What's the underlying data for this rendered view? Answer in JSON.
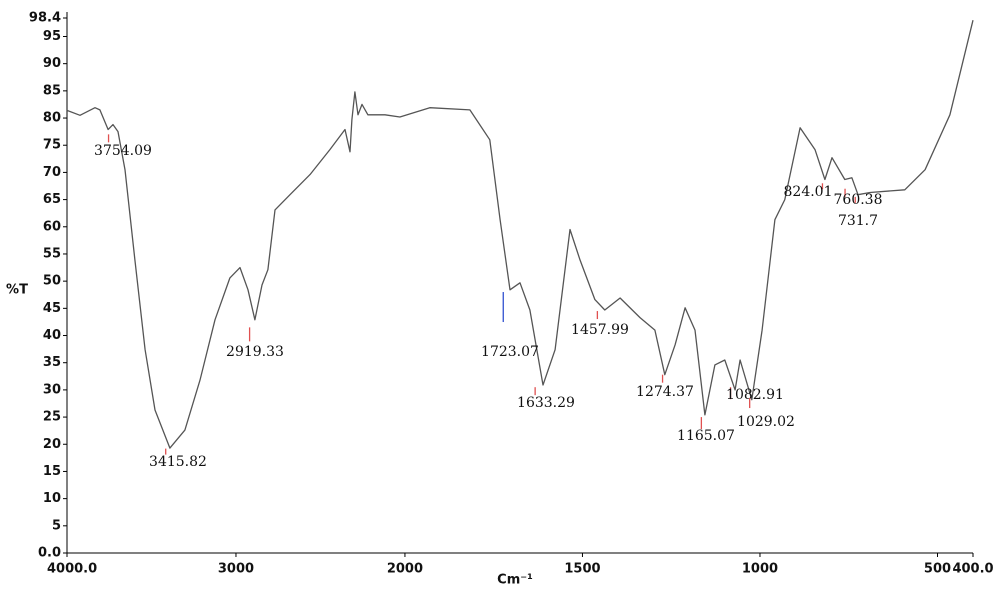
{
  "chart_data": {
    "type": "line",
    "x_label": "Cm⁻¹",
    "y_label": "%T",
    "xlim": [
      4000,
      400
    ],
    "x_break": 2000,
    "xticks": [
      {
        "value": 4000,
        "label": "4000.0"
      },
      3000,
      2000,
      1500,
      1000,
      500,
      {
        "value": 400,
        "label": "400.0"
      }
    ],
    "ylim": [
      0,
      98.4
    ],
    "yticks": [
      {
        "value": 0,
        "label": "0.0"
      },
      5,
      10,
      15,
      20,
      25,
      30,
      35,
      40,
      45,
      50,
      55,
      60,
      65,
      70,
      75,
      80,
      85,
      90,
      95,
      98.4
    ],
    "grid": false,
    "series": [
      {
        "color": "#555555",
        "x": [
          4000,
          3923,
          3834,
          3805,
          3757,
          3728,
          3698,
          3657,
          3598,
          3538,
          3479,
          3391,
          3302,
          3213,
          3124,
          3036,
          2976,
          2929,
          2888,
          2846,
          2811,
          2769,
          2680,
          2562,
          2444,
          2355,
          2325,
          2314,
          2296,
          2278,
          2254,
          2219,
          2118,
          2030,
          1930,
          1817,
          1761,
          1732,
          1704,
          1676,
          1648,
          1611,
          1577,
          1535,
          1507,
          1465,
          1437,
          1394,
          1338,
          1296,
          1268,
          1239,
          1211,
          1183,
          1155,
          1127,
          1099,
          1070,
          1056,
          1023,
          994,
          958,
          930,
          887,
          845,
          817,
          797,
          761,
          741,
          724,
          690,
          592,
          535,
          465,
          400
        ],
        "values": [
          81.4,
          80.5,
          81.9,
          81.5,
          77.9,
          78.8,
          77.5,
          70.5,
          53.9,
          37.4,
          26.3,
          19.3,
          22.6,
          31.8,
          42.9,
          50.6,
          52.5,
          48.4,
          42.9,
          49.3,
          52.1,
          63.1,
          65.9,
          69.6,
          74.2,
          77.9,
          73.8,
          79.7,
          84.8,
          80.6,
          82.5,
          80.6,
          80.6,
          80.2,
          81.9,
          81.5,
          76,
          61.3,
          48.4,
          49.7,
          44.7,
          30.9,
          37.4,
          59.5,
          53.9,
          46.6,
          44.7,
          46.9,
          43.3,
          41,
          32.8,
          38.3,
          45.1,
          41,
          25.4,
          34.6,
          35.5,
          30,
          35.5,
          28.2,
          41,
          61.3,
          65,
          78.2,
          74.2,
          68.7,
          72.7,
          68.7,
          69,
          65.9,
          66.3,
          66.8,
          70.5,
          80.6,
          98
        ]
      }
    ],
    "peaks": [
      {
        "x": 3754.09,
        "y": 77,
        "color": "#e05050"
      },
      {
        "x": 3415.82,
        "y": 19.2,
        "color": "#e05050"
      },
      {
        "x": 2919.33,
        "y": 41.5,
        "color": "#e05050"
      },
      {
        "x": 1723.07,
        "y": 48,
        "color": "#3050d0"
      },
      {
        "x": 1633.29,
        "y": 30.5,
        "color": "#e05050"
      },
      {
        "x": 1457.99,
        "y": 44.5,
        "color": "#e05050"
      },
      {
        "x": 1274.37,
        "y": 32.8,
        "color": "#e05050"
      },
      {
        "x": 1165.07,
        "y": 25,
        "color": "#e05050"
      },
      {
        "x": 1082.91,
        "y": 30.5,
        "color": "#e05050"
      },
      {
        "x": 1029.02,
        "y": 28.5,
        "color": "#e05050"
      },
      {
        "x": 824.01,
        "y": 68,
        "color": "#e05050"
      },
      {
        "x": 760.38,
        "y": 67,
        "color": "#e05050"
      },
      {
        "x": 731.7,
        "y": 65.5,
        "color": "#e05050"
      }
    ]
  }
}
